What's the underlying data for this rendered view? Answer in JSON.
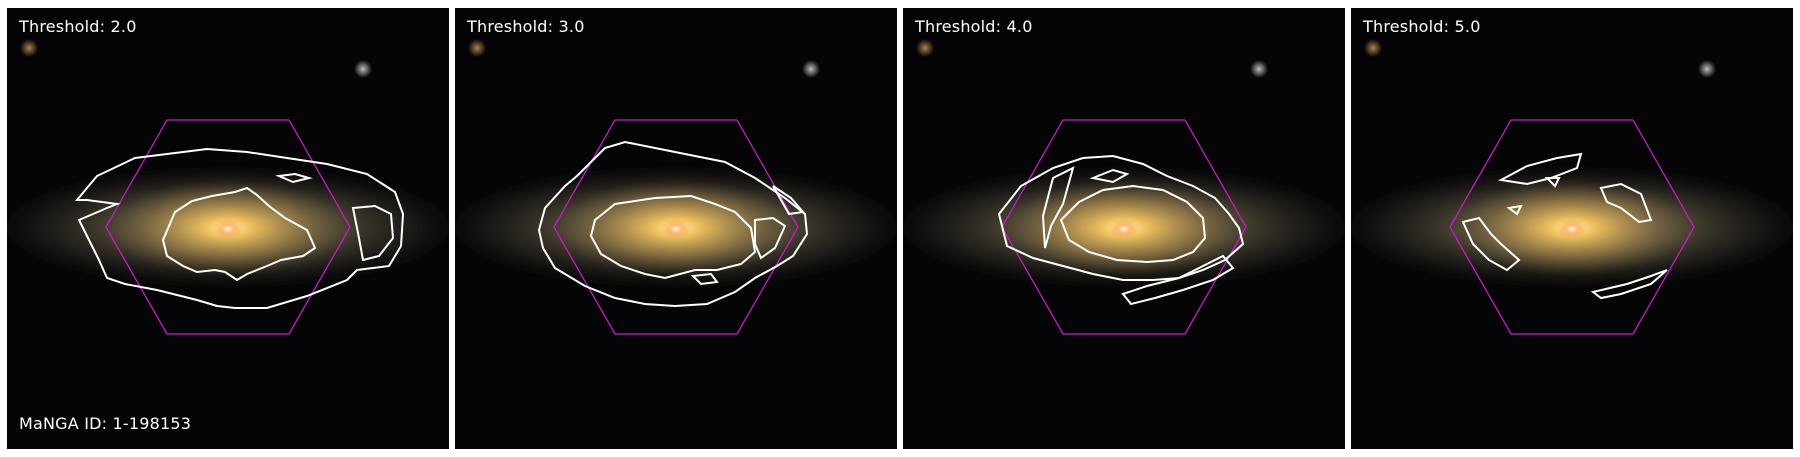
{
  "figure": {
    "panels": [
      {
        "threshold_label": "Threshold: 2.0"
      },
      {
        "threshold_label": "Threshold: 3.0"
      },
      {
        "threshold_label": "Threshold: 4.0"
      },
      {
        "threshold_label": "Threshold: 5.0"
      }
    ],
    "manga_label": "MaNGA ID: 1-198153"
  },
  "colors": {
    "background": "#050507",
    "galaxy_core": "#ffd36a",
    "galaxy_halo": "#b59a66",
    "contour": "#ffffff",
    "ifu_hexagon": "#c21fc2"
  }
}
